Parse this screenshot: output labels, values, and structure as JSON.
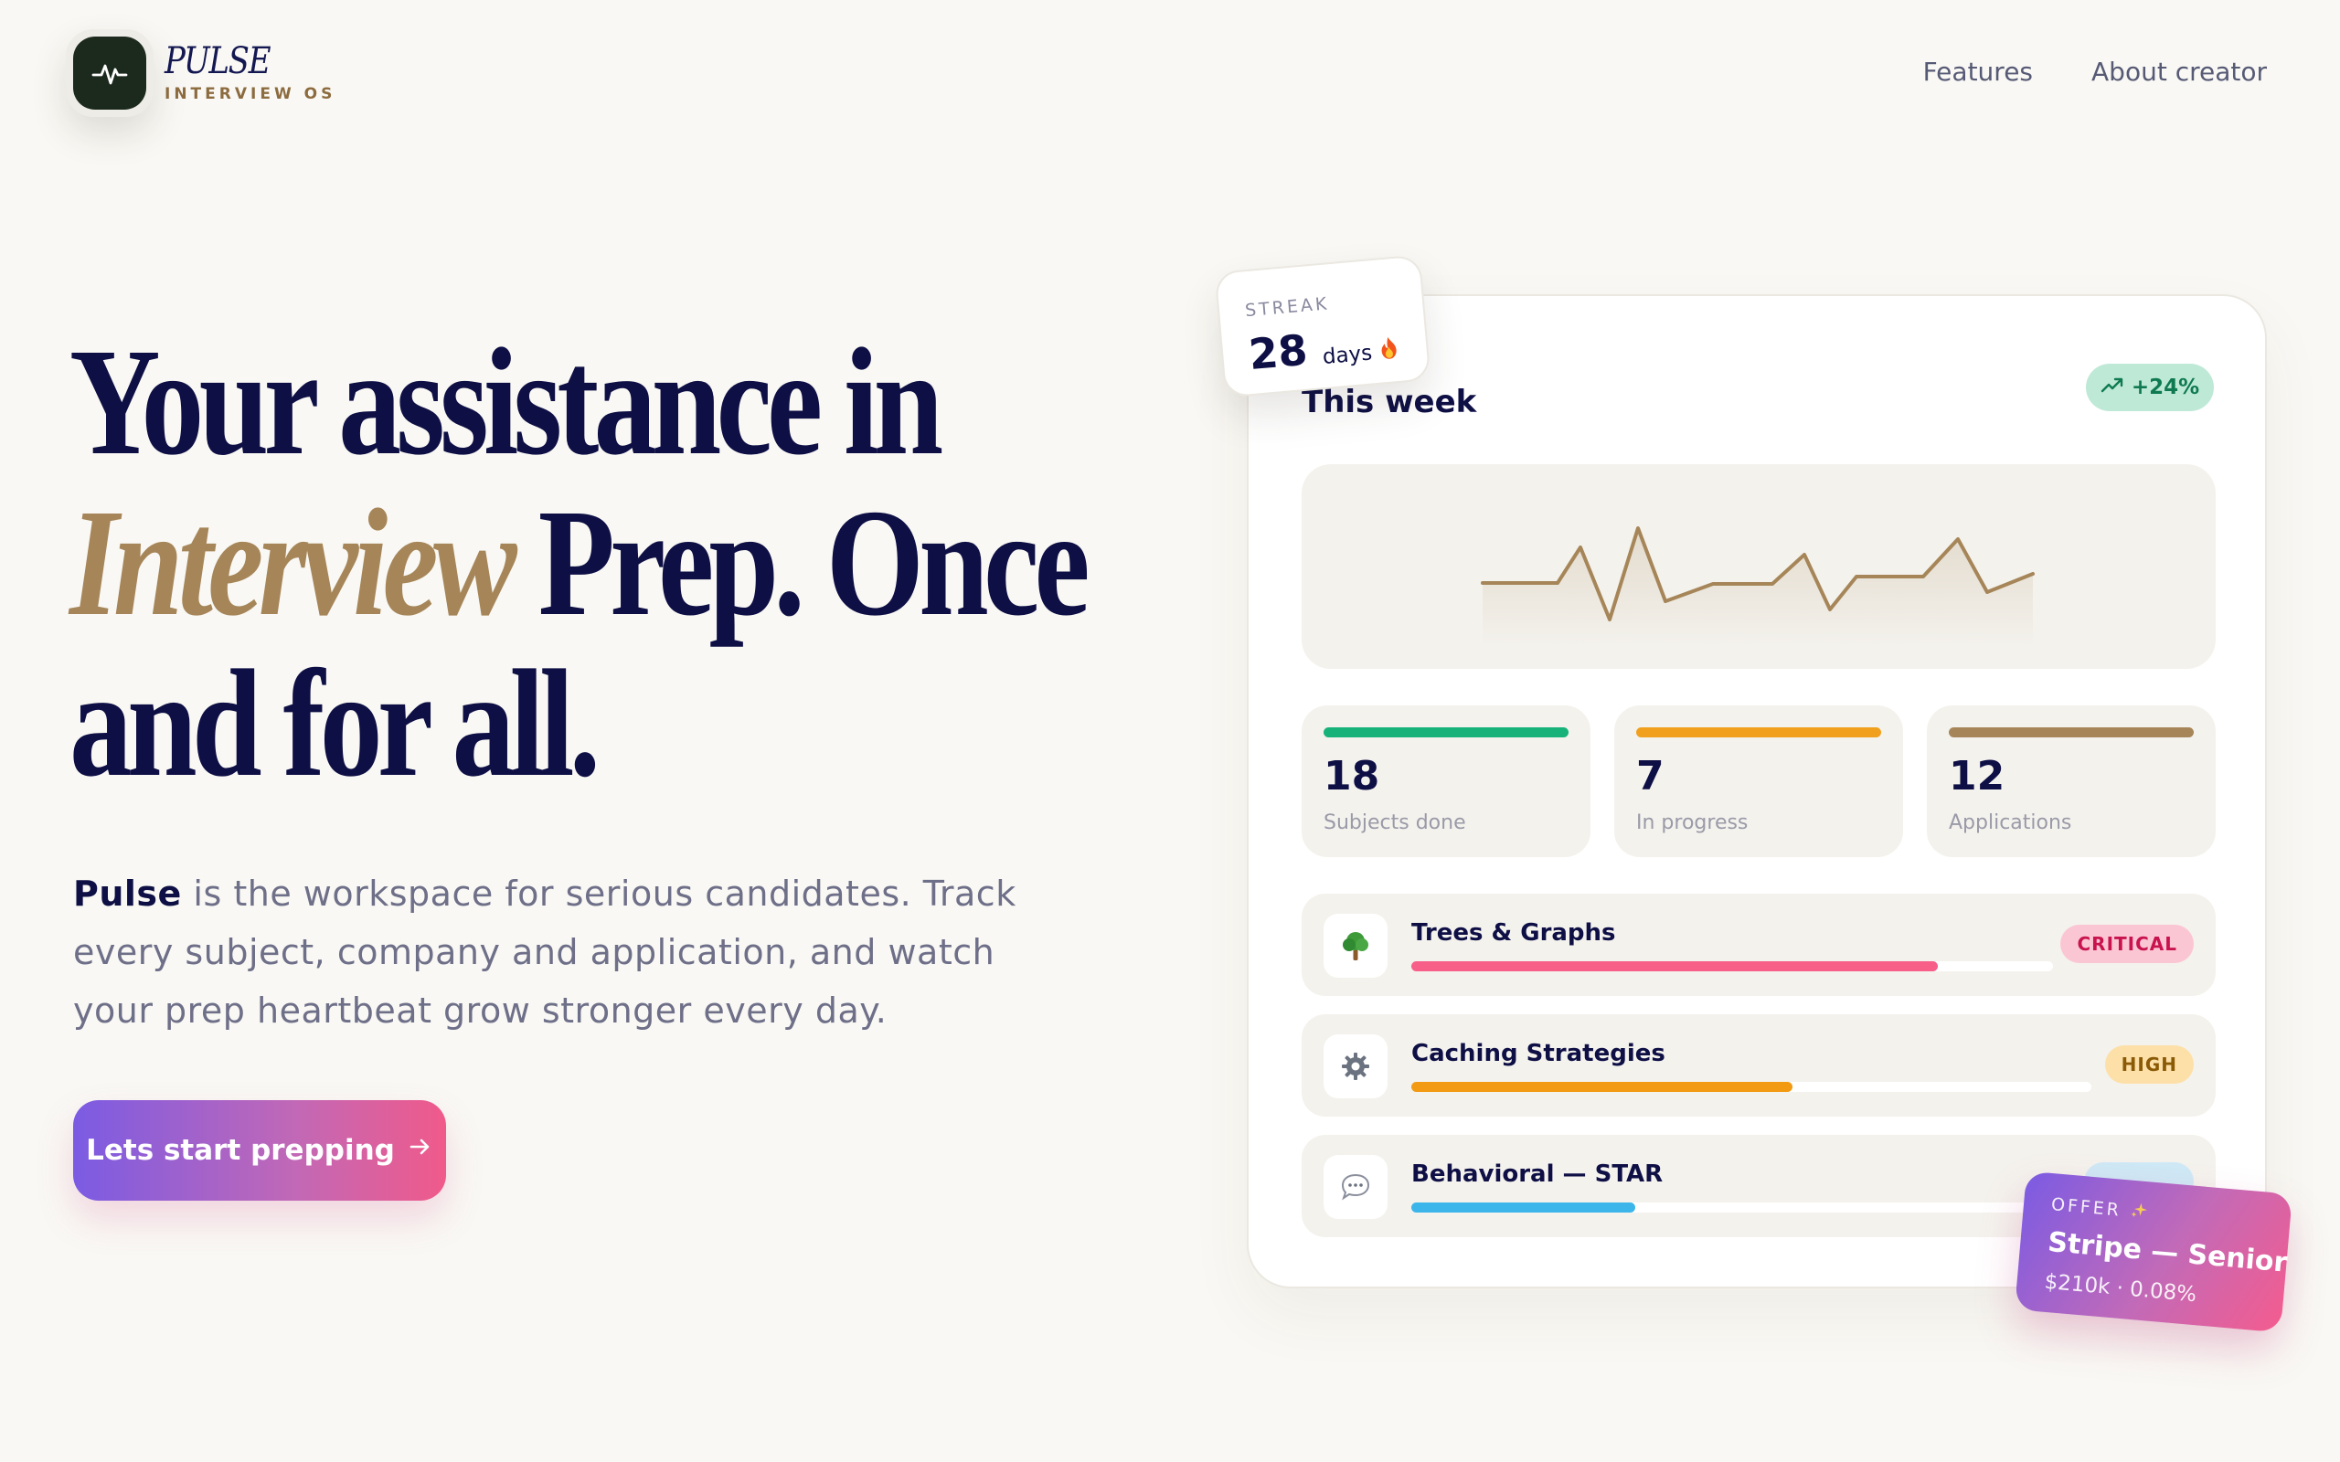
{
  "brand": {
    "name": "PULSE",
    "tagline": "INTERVIEW OS"
  },
  "nav": {
    "features": "Features",
    "about": "About creator"
  },
  "hero": {
    "line1": "Your assistance in",
    "line2_accent": "Interview",
    "line2_rest": " Prep. Once",
    "line3": "and for all.",
    "desc_brand": "Pulse",
    "desc_rest": " is the workspace for serious candidates. Track every subject, company and application, and watch your prep heartbeat grow stronger every day.",
    "cta_label": "Lets start prepping"
  },
  "dashboard": {
    "title": "This week",
    "growth": "+24%",
    "stats": [
      {
        "value": "18",
        "label": "Subjects done",
        "color": "#16b27a"
      },
      {
        "value": "7",
        "label": "In progress",
        "color": "#f0a01c"
      },
      {
        "value": "12",
        "label": "Applications",
        "color": "#a68659"
      }
    ],
    "subjects": [
      {
        "name": "Trees & Graphs",
        "icon": "tree-icon",
        "tag": "CRITICAL",
        "progress": 0.82,
        "color": "#f75e88",
        "tag_bg": "#fbc6d3",
        "tag_fg": "#c8134f"
      },
      {
        "name": "Caching Strategies",
        "icon": "gear-icon",
        "tag": "HIGH",
        "progress": 0.56,
        "color": "#f29a12",
        "tag_bg": "#fde0a8",
        "tag_fg": "#8a5a06"
      },
      {
        "name": "Behavioral — STAR",
        "icon": "speech-bubble-icon",
        "tag": "",
        "progress": 0.36,
        "color": "#3bb5ea",
        "tag_bg": "#cfe9f6",
        "tag_fg": "#1c6f95"
      }
    ]
  },
  "streak": {
    "caption": "STREAK",
    "value": "28",
    "unit": "days"
  },
  "offer": {
    "caption": "OFFER",
    "role": "Stripe — Senior",
    "comp": "$210k · 0.08%"
  },
  "colors": {
    "navy": "#0e0f45",
    "gold": "#a68659",
    "background": "#f9f8f4"
  }
}
